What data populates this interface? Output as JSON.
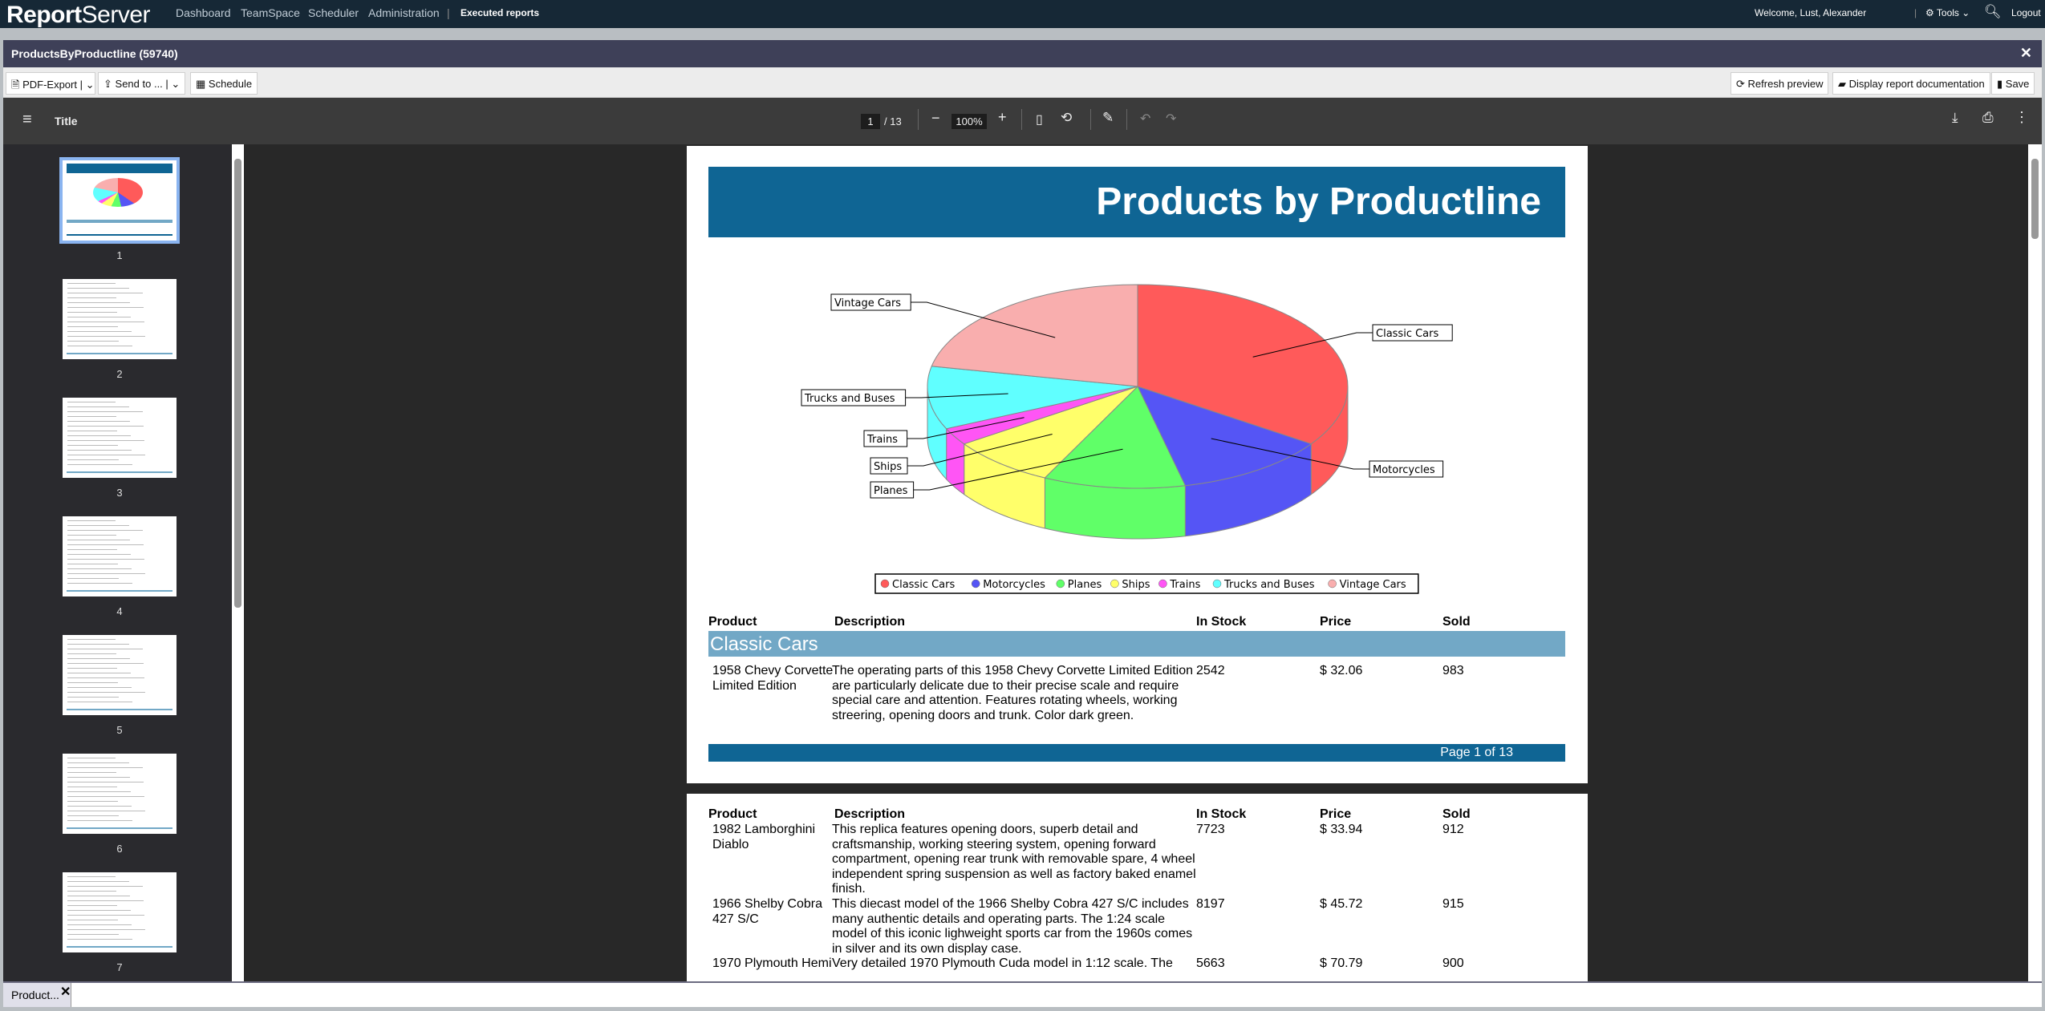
{
  "nav": {
    "logo_bold": "Report",
    "logo_light": "Server",
    "items": [
      "Dashboard",
      "TeamSpace",
      "Scheduler",
      "Administration"
    ],
    "active": "Executed reports",
    "welcome": "Welcome, Lust, Alexander",
    "tools": "Tools",
    "logout": "Logout"
  },
  "window": {
    "title": "ProductsByProductline (59740)"
  },
  "toolbar": {
    "pdf_export": "PDF-Export",
    "send_to": "Send to ...",
    "schedule": "Schedule",
    "refresh": "Refresh preview",
    "documentation": "Display report documentation",
    "save": "Save"
  },
  "viewer": {
    "title": "Title",
    "page_current": "1",
    "page_total": "/ 13",
    "zoom": "100%"
  },
  "thumbnails": [
    "1",
    "2",
    "3",
    "4",
    "5",
    "6",
    "7"
  ],
  "report": {
    "title": "Products by Productline",
    "columns": [
      "Product",
      "Description",
      "In Stock",
      "Price",
      "Sold"
    ],
    "group": "Classic Cars",
    "page1_rows": [
      {
        "product": [
          "1958 Chevy Corvette",
          "Limited Edition"
        ],
        "description": [
          "The operating parts of this 1958 Chevy Corvette Limited Edition",
          "are particularly delicate due to their precise scale and require",
          "special care and attention. Features rotating wheels, working",
          "streering, opening doors and trunk. Color dark green."
        ],
        "stock": "2542",
        "price": "$ 32.06",
        "sold": "983"
      }
    ],
    "footer": "Page 1 of 13",
    "page2_rows": [
      {
        "product": [
          "1982 Lamborghini",
          "Diablo"
        ],
        "description": [
          "This replica features opening doors, superb detail and",
          "craftsmanship, working steering system, opening forward",
          "compartment, opening rear trunk with removable spare, 4 wheel",
          "independent spring suspension as well as factory baked enamel",
          "finish."
        ],
        "stock": "7723",
        "price": "$ 33.94",
        "sold": "912"
      },
      {
        "product": [
          "1966 Shelby Cobra",
          "427 S/C"
        ],
        "description": [
          "This diecast model of the 1966 Shelby Cobra 427 S/C includes",
          "many authentic details and operating parts. The 1:24 scale",
          "model of this iconic lighweight sports car from the 1960s comes",
          "in silver and its own display case."
        ],
        "stock": "8197",
        "price": "$ 45.72",
        "sold": "915"
      },
      {
        "product": [
          "1970 Plymouth Hemi"
        ],
        "description": [
          "Very detailed 1970 Plymouth Cuda model in 1:12 scale. The"
        ],
        "stock": "5663",
        "price": "$ 70.79",
        "sold": "900"
      }
    ]
  },
  "chart_data": {
    "type": "pie",
    "style": "3d",
    "categories": [
      "Classic Cars",
      "Motorcycles",
      "Planes",
      "Ships",
      "Trains",
      "Trucks and Buses",
      "Vintage Cars"
    ],
    "values": [
      38,
      13,
      12,
      9,
      3,
      11,
      24
    ],
    "colors": [
      "#ff5a5a",
      "#5555f5",
      "#60ff68",
      "#ffff6a",
      "#ff55f5",
      "#60ffff",
      "#f9aeae"
    ],
    "legend": "bottom"
  },
  "bottom_tab": {
    "label": "Product..."
  }
}
